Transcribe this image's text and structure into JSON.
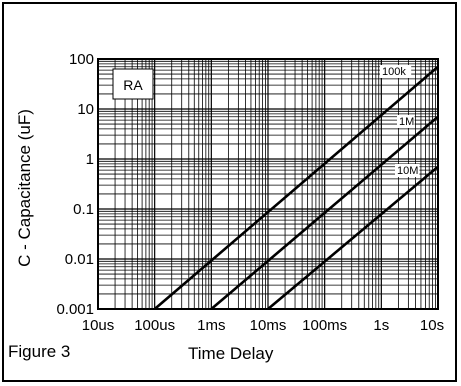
{
  "figure_label": "Figure 3",
  "chart_data": {
    "type": "line",
    "title": "",
    "xlabel": "Time Delay",
    "ylabel": "C - Capacitance (uF)",
    "x_scale": "log",
    "y_scale": "log",
    "xlim_seconds": [
      1e-05,
      10
    ],
    "ylim_uF": [
      0.001,
      100
    ],
    "x_tick_labels": [
      "10us",
      "100us",
      "1ms",
      "10ms",
      "100ms",
      "1s",
      "10s"
    ],
    "y_tick_labels": [
      "0.001",
      "0.01",
      "0.1",
      "1",
      "10",
      "100"
    ],
    "grid": true,
    "annotation": "RA",
    "series": [
      {
        "name": "100k",
        "x_seconds": [
          0.0001,
          10
        ],
        "y_uF": [
          0.001,
          70
        ]
      },
      {
        "name": "1M",
        "x_seconds": [
          0.001,
          10
        ],
        "y_uF": [
          0.001,
          7
        ]
      },
      {
        "name": "10M",
        "x_seconds": [
          0.01,
          10
        ],
        "y_uF": [
          0.001,
          0.7
        ]
      }
    ]
  }
}
